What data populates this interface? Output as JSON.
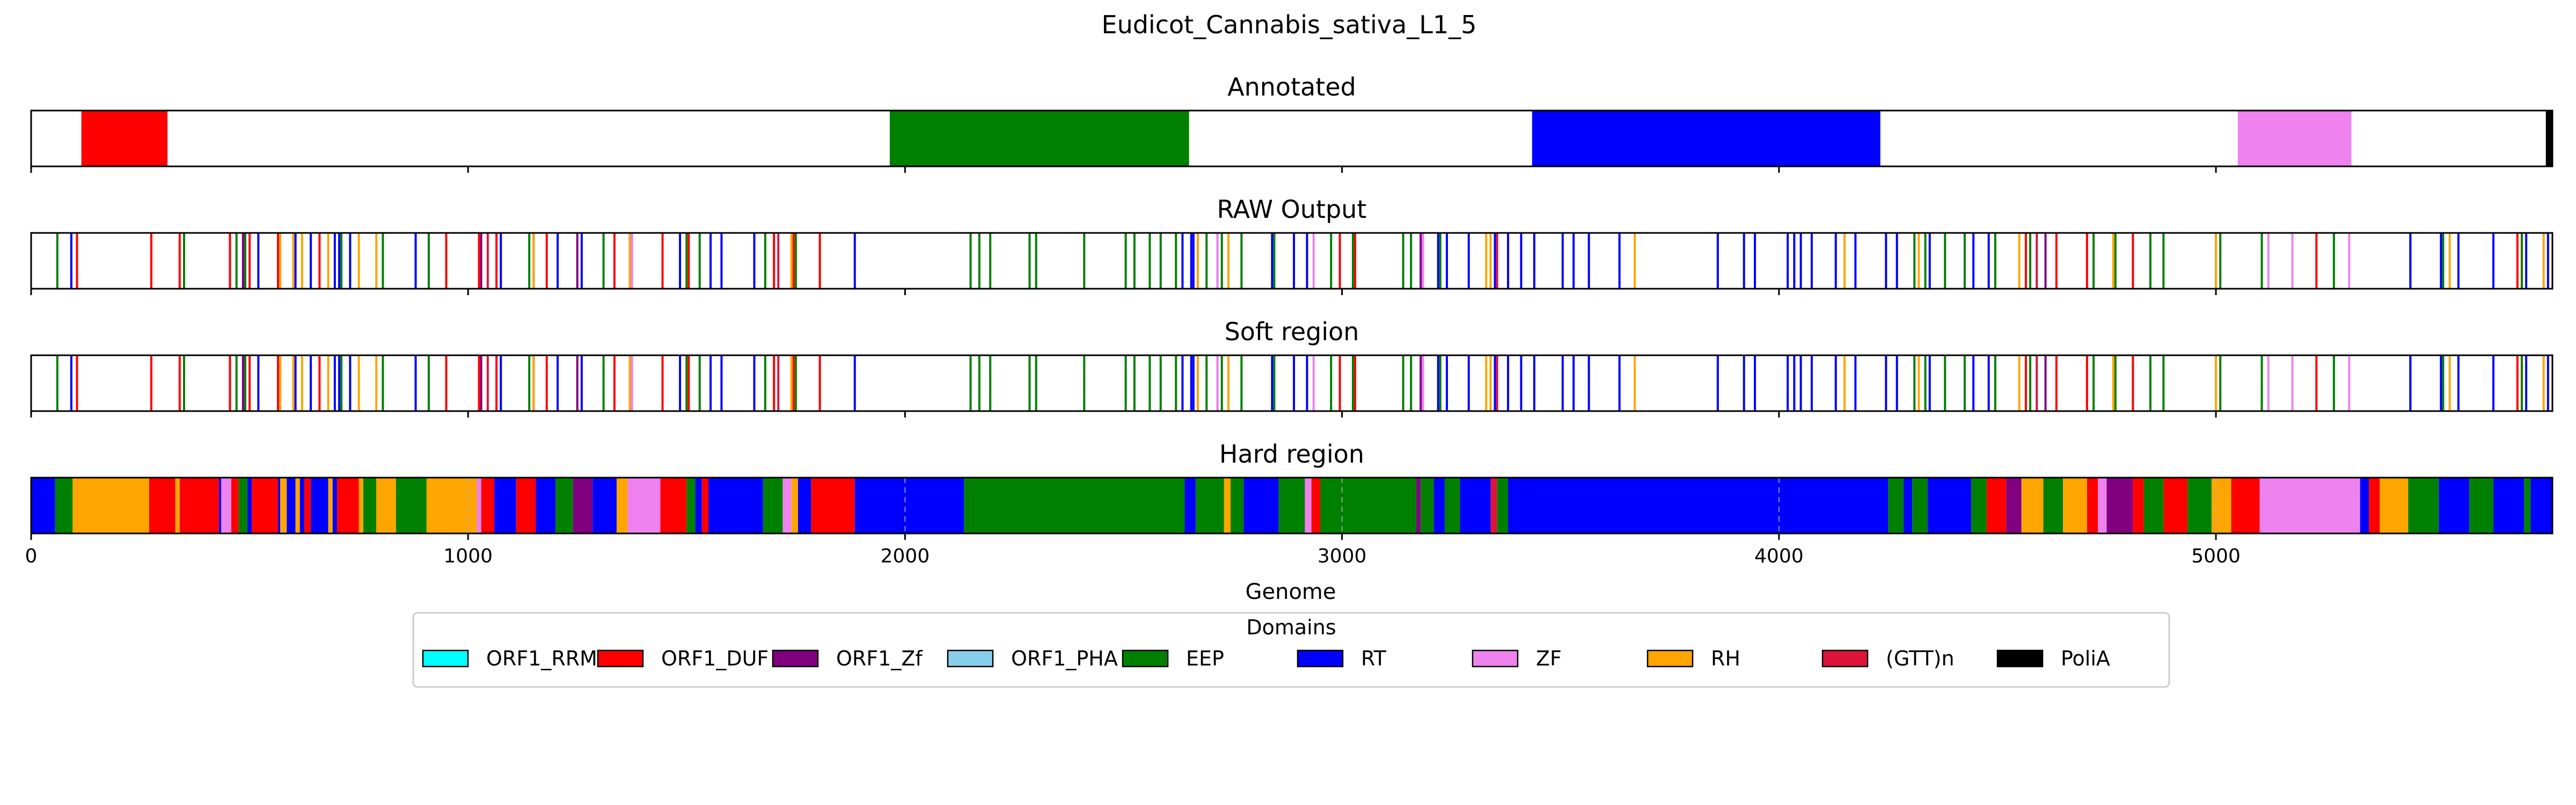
{
  "chart_data": {
    "type": "bar",
    "title": "Eudicot_Cannabis_sativa_L1_5",
    "xlabel": "Genome",
    "xlim": [
      0,
      5770
    ],
    "xticks": [
      0,
      1000,
      2000,
      3000,
      4000,
      5000
    ],
    "grid": "vertical-dashed-on-hard-region",
    "legend": {
      "title": "Domains",
      "position": "bottom-center",
      "entries": [
        {
          "name": "ORF1_RRM",
          "color": "#00ffff"
        },
        {
          "name": "ORF1_DUF",
          "color": "#ff0000"
        },
        {
          "name": "ORF1_Zf",
          "color": "#800080"
        },
        {
          "name": "ORF1_PHA",
          "color": "#87ceeb"
        },
        {
          "name": "EEP",
          "color": "#008000"
        },
        {
          "name": "RT",
          "color": "#0000ff"
        },
        {
          "name": "ZF",
          "color": "#ee82ee"
        },
        {
          "name": "RH",
          "color": "#ffa500"
        },
        {
          "name": "(GTT)n",
          "color": "#dc143c"
        },
        {
          "name": "PoliA",
          "color": "#000000"
        }
      ]
    },
    "tracks": [
      {
        "name": "Annotated",
        "kind": "segments",
        "segments": [
          {
            "domain": "ORF1_DUF",
            "start": 115,
            "end": 312
          },
          {
            "domain": "EEP",
            "start": 1965,
            "end": 2650
          },
          {
            "domain": "RT",
            "start": 3435,
            "end": 4232
          },
          {
            "domain": "ZF",
            "start": 5050,
            "end": 5310
          },
          {
            "domain": "PoliA",
            "start": 5755,
            "end": 5770
          }
        ]
      },
      {
        "name": "RAW Output",
        "kind": "lines",
        "lines": [
          {
            "domain": "EEP",
            "x": [
              60,
              350,
              470,
              490,
              640,
              710,
              805,
              910,
              1140,
              1310,
              1375,
              1500,
              1530,
              1680,
              1750,
              2150,
              2170,
              2195,
              2285,
              2300,
              2410,
              2505,
              2525,
              2560,
              2585,
              2620,
              2670,
              2690,
              2725,
              2740,
              2770,
              2845,
              2975,
              3025,
              3140,
              3158,
              3225,
              3340,
              4310,
              4335,
              4380,
              4425,
              4495,
              4575,
              4610,
              4720,
              4770,
              4850,
              4880,
              5010,
              5105,
              5270,
              5445,
              5520,
              5700
            ]
          },
          {
            "domain": "ORF1_DUF",
            "x": [
              105,
              275,
              340,
              455,
              500,
              565,
              660,
              950,
              1025,
              1065,
              1180,
              1335,
              1445,
              1505,
              1700,
              1745,
              1805,
              2995,
              3030,
              4565,
              4635,
              4705,
              4810,
              5000,
              5230,
              5690
            ]
          },
          {
            "domain": "RT",
            "x": [
              92,
              485,
              520,
              605,
              640,
              695,
              705,
              730,
              880,
              1075,
              1150,
              1205,
              1260,
              1375,
              1485,
              1555,
              1580,
              1655,
              1885,
              2635,
              2655,
              2660,
              2715,
              2840,
              2890,
              2920,
              3185,
              3220,
              3240,
              3290,
              3350,
              3380,
              3410,
              3440,
              3505,
              3530,
              3565,
              3635,
              3860,
              3920,
              3945,
              4020,
              4035,
              4050,
              4075,
              4130,
              4175,
              4245,
              4270,
              4345,
              4445,
              4480,
              5445,
              5515,
              5555,
              5635,
              5710,
              5760
            ]
          },
          {
            "domain": "RH",
            "x": [
              570,
              600,
              620,
              680,
              750,
              790,
              1150,
              1370,
              1740,
              2670,
              2740,
              3330,
              3340,
              3670,
              4150,
              4320,
              4550,
              4765,
              5000,
              5535,
              5750
            ]
          },
          {
            "domain": "ORF1_Zf",
            "x": [
              485,
              1030,
              1250,
              3180,
              4610
            ]
          },
          {
            "domain": "(GTT)n",
            "x": [
              1045,
              1710,
              3355,
              4590
            ]
          },
          {
            "domain": "ZF",
            "x": [
              1375,
              2715,
              2935,
              3185,
              5120,
              5175,
              5305
            ]
          }
        ]
      },
      {
        "name": "Soft region",
        "kind": "lines",
        "same_as": "RAW Output"
      },
      {
        "name": "Hard region",
        "kind": "segments",
        "segments": [
          {
            "domain": "RT",
            "start": 0,
            "end": 55
          },
          {
            "domain": "EEP",
            "start": 55,
            "end": 95
          },
          {
            "domain": "RH",
            "start": 95,
            "end": 270
          },
          {
            "domain": "ORF1_DUF",
            "start": 270,
            "end": 330
          },
          {
            "domain": "RH",
            "start": 330,
            "end": 340
          },
          {
            "domain": "ORF1_DUF",
            "start": 340,
            "end": 430
          },
          {
            "domain": "RT",
            "start": 430,
            "end": 435
          },
          {
            "domain": "ZF",
            "start": 435,
            "end": 458
          },
          {
            "domain": "ORF1_DUF",
            "start": 458,
            "end": 475
          },
          {
            "domain": "EEP",
            "start": 475,
            "end": 495
          },
          {
            "domain": "RT",
            "start": 495,
            "end": 505
          },
          {
            "domain": "ORF1_DUF",
            "start": 505,
            "end": 565
          },
          {
            "domain": "RT",
            "start": 565,
            "end": 570
          },
          {
            "domain": "RH",
            "start": 570,
            "end": 585
          },
          {
            "domain": "RT",
            "start": 585,
            "end": 605
          },
          {
            "domain": "RH",
            "start": 605,
            "end": 615
          },
          {
            "domain": "RT",
            "start": 615,
            "end": 625
          },
          {
            "domain": "ORF1_DUF",
            "start": 625,
            "end": 640
          },
          {
            "domain": "RT",
            "start": 640,
            "end": 680
          },
          {
            "domain": "RH",
            "start": 680,
            "end": 690
          },
          {
            "domain": "RT",
            "start": 690,
            "end": 700
          },
          {
            "domain": "ORF1_DUF",
            "start": 700,
            "end": 750
          },
          {
            "domain": "RH",
            "start": 750,
            "end": 760
          },
          {
            "domain": "EEP",
            "start": 760,
            "end": 790
          },
          {
            "domain": "RH",
            "start": 790,
            "end": 835
          },
          {
            "domain": "EEP",
            "start": 835,
            "end": 905
          },
          {
            "domain": "RH",
            "start": 905,
            "end": 1020
          },
          {
            "domain": "ZF",
            "start": 1020,
            "end": 1030
          },
          {
            "domain": "ORF1_DUF",
            "start": 1030,
            "end": 1060
          },
          {
            "domain": "RT",
            "start": 1060,
            "end": 1110
          },
          {
            "domain": "ORF1_DUF",
            "start": 1110,
            "end": 1155
          },
          {
            "domain": "RT",
            "start": 1155,
            "end": 1200
          },
          {
            "domain": "EEP",
            "start": 1200,
            "end": 1240
          },
          {
            "domain": "ORF1_Zf",
            "start": 1240,
            "end": 1285
          },
          {
            "domain": "RT",
            "start": 1285,
            "end": 1340
          },
          {
            "domain": "RH",
            "start": 1340,
            "end": 1365
          },
          {
            "domain": "ZF",
            "start": 1365,
            "end": 1440
          },
          {
            "domain": "ORF1_DUF",
            "start": 1440,
            "end": 1500
          },
          {
            "domain": "EEP",
            "start": 1500,
            "end": 1520
          },
          {
            "domain": "RT",
            "start": 1520,
            "end": 1535
          },
          {
            "domain": "ORF1_DUF",
            "start": 1535,
            "end": 1550
          },
          {
            "domain": "RT",
            "start": 1550,
            "end": 1675
          },
          {
            "domain": "EEP",
            "start": 1675,
            "end": 1720
          },
          {
            "domain": "ZF",
            "start": 1720,
            "end": 1740
          },
          {
            "domain": "RH",
            "start": 1740,
            "end": 1755
          },
          {
            "domain": "RT",
            "start": 1755,
            "end": 1785
          },
          {
            "domain": "ORF1_DUF",
            "start": 1785,
            "end": 1885
          },
          {
            "domain": "RT",
            "start": 1885,
            "end": 2135
          },
          {
            "domain": "EEP",
            "start": 2135,
            "end": 2640
          },
          {
            "domain": "RT",
            "start": 2640,
            "end": 2665
          },
          {
            "domain": "EEP",
            "start": 2665,
            "end": 2730
          },
          {
            "domain": "RH",
            "start": 2730,
            "end": 2745
          },
          {
            "domain": "EEP",
            "start": 2745,
            "end": 2775
          },
          {
            "domain": "RT",
            "start": 2775,
            "end": 2855
          },
          {
            "domain": "EEP",
            "start": 2855,
            "end": 2915
          },
          {
            "domain": "ZF",
            "start": 2915,
            "end": 2930
          },
          {
            "domain": "ORF1_DUF",
            "start": 2930,
            "end": 2950
          },
          {
            "domain": "EEP",
            "start": 2950,
            "end": 3170
          },
          {
            "domain": "ORF1_Zf",
            "start": 3170,
            "end": 3180
          },
          {
            "domain": "EEP",
            "start": 3180,
            "end": 3210
          },
          {
            "domain": "RT",
            "start": 3210,
            "end": 3235
          },
          {
            "domain": "EEP",
            "start": 3235,
            "end": 3270
          },
          {
            "domain": "RT",
            "start": 3270,
            "end": 3340
          },
          {
            "domain": "(GTT)n",
            "start": 3340,
            "end": 3355
          },
          {
            "domain": "EEP",
            "start": 3355,
            "end": 3380
          },
          {
            "domain": "RT",
            "start": 3380,
            "end": 4250
          },
          {
            "domain": "EEP",
            "start": 4250,
            "end": 4285
          },
          {
            "domain": "RT",
            "start": 4285,
            "end": 4305
          },
          {
            "domain": "EEP",
            "start": 4305,
            "end": 4340
          },
          {
            "domain": "RT",
            "start": 4340,
            "end": 4440
          },
          {
            "domain": "EEP",
            "start": 4440,
            "end": 4475
          },
          {
            "domain": "ORF1_DUF",
            "start": 4475,
            "end": 4520
          },
          {
            "domain": "ORF1_Zf",
            "start": 4520,
            "end": 4555
          },
          {
            "domain": "RH",
            "start": 4555,
            "end": 4605
          },
          {
            "domain": "EEP",
            "start": 4605,
            "end": 4650
          },
          {
            "domain": "RH",
            "start": 4650,
            "end": 4705
          },
          {
            "domain": "ORF1_DUF",
            "start": 4705,
            "end": 4730
          },
          {
            "domain": "ZF",
            "start": 4730,
            "end": 4750
          },
          {
            "domain": "ORF1_Zf",
            "start": 4750,
            "end": 4810
          },
          {
            "domain": "ORF1_DUF",
            "start": 4810,
            "end": 4835
          },
          {
            "domain": "EEP",
            "start": 4835,
            "end": 4880
          },
          {
            "domain": "ORF1_DUF",
            "start": 4880,
            "end": 4935
          },
          {
            "domain": "EEP",
            "start": 4935,
            "end": 4990
          },
          {
            "domain": "RH",
            "start": 4990,
            "end": 5035
          },
          {
            "domain": "ORF1_DUF",
            "start": 5035,
            "end": 5100
          },
          {
            "domain": "ZF",
            "start": 5100,
            "end": 5330
          },
          {
            "domain": "RT",
            "start": 5330,
            "end": 5350
          },
          {
            "domain": "ORF1_DUF",
            "start": 5350,
            "end": 5375
          },
          {
            "domain": "RH",
            "start": 5375,
            "end": 5440
          },
          {
            "domain": "EEP",
            "start": 5440,
            "end": 5510
          },
          {
            "domain": "RT",
            "start": 5510,
            "end": 5580
          },
          {
            "domain": "EEP",
            "start": 5580,
            "end": 5635
          },
          {
            "domain": "RT",
            "start": 5635,
            "end": 5705
          },
          {
            "domain": "EEP",
            "start": 5705,
            "end": 5720
          },
          {
            "domain": "RT",
            "start": 5720,
            "end": 5770
          }
        ]
      }
    ]
  }
}
